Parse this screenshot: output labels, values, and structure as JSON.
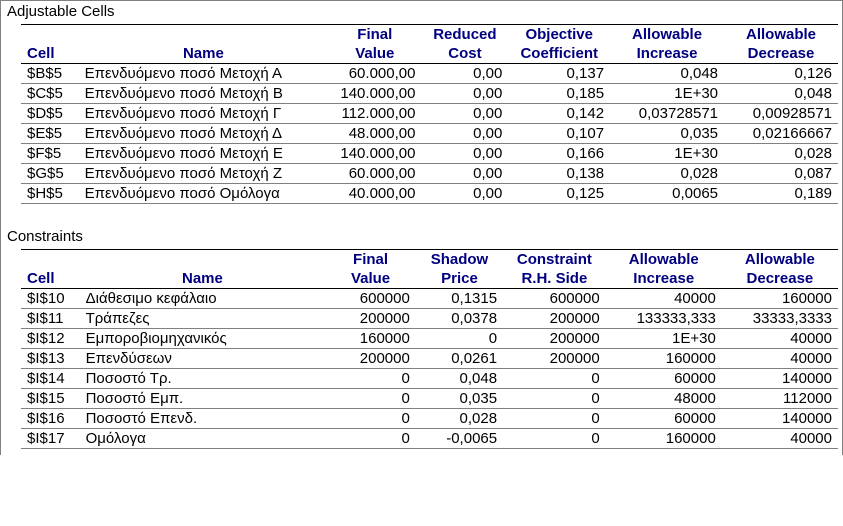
{
  "sections": {
    "adjustable": {
      "title": "Adjustable Cells",
      "headers": {
        "cell": "Cell",
        "name": "Name",
        "final_value": "Final\nValue",
        "col3": "Reduced\nCost",
        "col4": "Objective\nCoefficient",
        "col5": "Allowable\nIncrease",
        "col6": "Allowable\nDecrease"
      },
      "rows": [
        {
          "cell": "$B$5",
          "name": "Επενδυόμενο ποσό Μετοχή Α",
          "fv": "60.000,00",
          "c3": "0,00",
          "c4": "0,137",
          "c5": "0,048",
          "c6": "0,126"
        },
        {
          "cell": "$C$5",
          "name": "Επενδυόμενο ποσό Μετοχή Β",
          "fv": "140.000,00",
          "c3": "0,00",
          "c4": "0,185",
          "c5": "1E+30",
          "c6": "0,048"
        },
        {
          "cell": "$D$5",
          "name": "Επενδυόμενο ποσό Μετοχή Γ",
          "fv": "112.000,00",
          "c3": "0,00",
          "c4": "0,142",
          "c5": "0,03728571",
          "c6": "0,00928571"
        },
        {
          "cell": "$E$5",
          "name": "Επενδυόμενο ποσό Μετοχή Δ",
          "fv": "48.000,00",
          "c3": "0,00",
          "c4": "0,107",
          "c5": "0,035",
          "c6": "0,02166667"
        },
        {
          "cell": "$F$5",
          "name": "Επενδυόμενο ποσό Μετοχή Ε",
          "fv": "140.000,00",
          "c3": "0,00",
          "c4": "0,166",
          "c5": "1E+30",
          "c6": "0,028"
        },
        {
          "cell": "$G$5",
          "name": "Επενδυόμενο ποσό Μετοχή Ζ",
          "fv": "60.000,00",
          "c3": "0,00",
          "c4": "0,138",
          "c5": "0,028",
          "c6": "0,087"
        },
        {
          "cell": "$H$5",
          "name": "Επενδυόμενο ποσό Ομόλογα",
          "fv": "40.000,00",
          "c3": "0,00",
          "c4": "0,125",
          "c5": "0,0065",
          "c6": "0,189"
        }
      ]
    },
    "constraints": {
      "title": "Constraints",
      "headers": {
        "cell": "Cell",
        "name": "Name",
        "final_value": "Final\nValue",
        "col3": "Shadow\nPrice",
        "col4": "Constraint\nR.H. Side",
        "col5": "Allowable\nIncrease",
        "col6": "Allowable\nDecrease"
      },
      "rows": [
        {
          "cell": "$I$10",
          "name": "Διάθεσιμο κεφάλαιο",
          "fv": "600000",
          "c3": "0,1315",
          "c4": "600000",
          "c5": "40000",
          "c6": "160000"
        },
        {
          "cell": "$I$11",
          "name": "Τράπεζες",
          "fv": "200000",
          "c3": "0,0378",
          "c4": "200000",
          "c5": "133333,333",
          "c6": "33333,3333"
        },
        {
          "cell": "$I$12",
          "name": "Εμποροβιομηχανικός",
          "fv": "160000",
          "c3": "0",
          "c4": "200000",
          "c5": "1E+30",
          "c6": "40000"
        },
        {
          "cell": "$I$13",
          "name": "Επενδύσεων",
          "fv": "200000",
          "c3": "0,0261",
          "c4": "200000",
          "c5": "160000",
          "c6": "40000"
        },
        {
          "cell": "$I$14",
          "name": "Ποσοστό Τρ.",
          "fv": "0",
          "c3": "0,048",
          "c4": "0",
          "c5": "60000",
          "c6": "140000"
        },
        {
          "cell": "$I$15",
          "name": "Ποσοστό Εμπ.",
          "fv": "0",
          "c3": "0,035",
          "c4": "0",
          "c5": "48000",
          "c6": "112000"
        },
        {
          "cell": "$I$16",
          "name": "Ποσοστό Επενδ.",
          "fv": "0",
          "c3": "0,028",
          "c4": "0",
          "c5": "60000",
          "c6": "140000"
        },
        {
          "cell": "$I$17",
          "name": "Ομόλογα",
          "fv": "0",
          "c3": "-0,0065",
          "c4": "0",
          "c5": "160000",
          "c6": "40000"
        }
      ]
    }
  }
}
